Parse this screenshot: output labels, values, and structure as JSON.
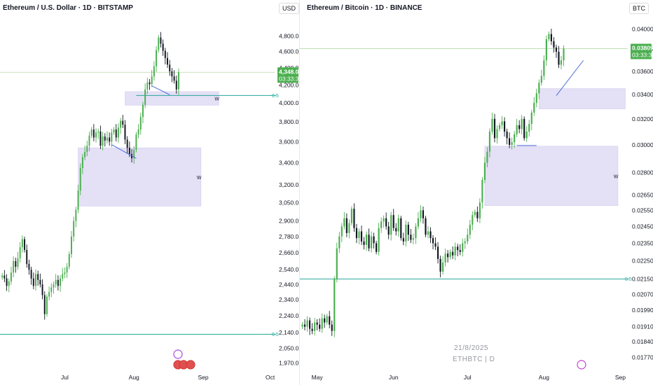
{
  "colors": {
    "up": "#4caf50",
    "down": "#131722",
    "zone": "#e4e0f5",
    "zone_border": "#cfc7ee",
    "level_line": "#26a69a",
    "price_line": "#b7d9a8",
    "trend_line": "#4a6fd8",
    "price_tag_bg": "#4caf50"
  },
  "chart_data": [
    {
      "type": "candlestick",
      "title": "Ethereum / U.S. Dollar · 1D · BITSTAMP",
      "currency": "USD",
      "y_scale": "log",
      "ylim": [
        1920,
        5000
      ],
      "y_ticks": [
        "4,800.0",
        "4,600.0",
        "4,400.0",
        "4,200.0",
        "4,000.0",
        "3,800.0",
        "3,600.0",
        "3,400.0",
        "3,200.0",
        "3,050.0",
        "2,900.0",
        "2,780.0",
        "2,660.0",
        "2,540.0",
        "2,440.0",
        "2,340.0",
        "2,240.0",
        "2,140.0",
        "2,050.0",
        "1,970.0"
      ],
      "y_tick_values": [
        4800,
        4600,
        4400,
        4200,
        4000,
        3800,
        3600,
        3400,
        3200,
        3050,
        2900,
        2780,
        2660,
        2540,
        2440,
        2340,
        2240,
        2140,
        2050,
        1970
      ],
      "x_ticks": [
        {
          "label": "Jul",
          "x": 28
        },
        {
          "label": "Aug",
          "x": 59
        },
        {
          "label": "Sep",
          "x": 90
        },
        {
          "label": "Oct",
          "x": 120
        }
      ],
      "x_range": [
        -1,
        122
      ],
      "current_price": {
        "value": 4348.0,
        "label": "4,348.0",
        "countdown": "03:33:35"
      },
      "levels": [
        {
          "value": 4082,
          "label": "0.5",
          "x_start": 60
        },
        {
          "value": 2130,
          "label": "0.5",
          "x_start": -1
        }
      ],
      "zones": [
        {
          "x0": 55,
          "x1": 97,
          "y_low": 3975,
          "y_high": 4125,
          "label": "W"
        },
        {
          "x0": 34,
          "x1": 89,
          "y_low": 3020,
          "y_high": 3540,
          "label": "W"
        }
      ],
      "trend_lines": [
        [
          {
            "x": 49,
            "y": 3570
          },
          {
            "x": 60,
            "y": 3440
          }
        ],
        [
          {
            "x": 67,
            "y": 4190
          },
          {
            "x": 75,
            "y": 4090
          }
        ]
      ],
      "closes": [
        2500,
        2480,
        2430,
        2460,
        2520,
        2600,
        2560,
        2620,
        2700,
        2760,
        2680,
        2580,
        2540,
        2480,
        2430,
        2510,
        2470,
        2440,
        2370,
        2250,
        2360,
        2390,
        2420,
        2440,
        2470,
        2430,
        2480,
        2510,
        2520,
        2560,
        2650,
        2780,
        2900,
        2990,
        3150,
        3350,
        3450,
        3500,
        3560,
        3660,
        3720,
        3640,
        3690,
        3700,
        3560,
        3650,
        3610,
        3640,
        3600,
        3690,
        3720,
        3640,
        3740,
        3810,
        3770,
        3620,
        3540,
        3480,
        3440,
        3520,
        3670,
        3720,
        3850,
        3980,
        4150,
        4230,
        4210,
        4300,
        4420,
        4620,
        4780,
        4700,
        4610,
        4520,
        4440,
        4360,
        4300,
        4250,
        4150,
        4348
      ],
      "label_hires": "Jul"
    },
    {
      "type": "candlestick",
      "title": "Ethereum / Bitcoin · 1D · BINANCE",
      "currency": "BTC",
      "y_scale": "log",
      "ylim": [
        0.01735,
        0.0408
      ],
      "y_ticks": [
        "0.04000",
        "0.03809",
        "0.03600",
        "0.03400",
        "0.03200",
        "0.03000",
        "0.02800",
        "0.02650",
        "0.02550",
        "0.02450",
        "0.02350",
        "0.02250",
        "0.02150",
        "0.02070",
        "0.01990",
        "0.01910",
        "0.01840",
        "0.01770"
      ],
      "y_tick_values": [
        0.04,
        0.03809,
        0.036,
        0.034,
        0.032,
        0.03,
        0.028,
        0.0265,
        0.0255,
        0.0245,
        0.0235,
        0.0225,
        0.0215,
        0.0207,
        0.0199,
        0.0191,
        0.0184,
        0.0177
      ],
      "x_ticks": [
        {
          "label": "May",
          "x": 6
        },
        {
          "label": "Jun",
          "x": 37
        },
        {
          "label": "Jul",
          "x": 67
        },
        {
          "label": "Aug",
          "x": 98
        },
        {
          "label": "Sep",
          "x": 129
        }
      ],
      "x_range": [
        -1,
        132
      ],
      "current_price": {
        "value": 0.03809,
        "label": "0.03809",
        "countdown": "03:33:35"
      },
      "levels": [
        {
          "value": 0.0215,
          "label": "0.5",
          "x_start": -1
        }
      ],
      "zones": [
        {
          "x0": 96,
          "x1": 131,
          "y_low": 0.0328,
          "y_high": 0.0345,
          "label": ""
        },
        {
          "x0": 74,
          "x1": 128,
          "y_low": 0.0258,
          "y_high": 0.0299,
          "label": "W"
        }
      ],
      "trend_lines": [
        [
          {
            "x": 87,
            "y": 0.02995
          },
          {
            "x": 95,
            "y": 0.02995
          }
        ],
        [
          {
            "x": 103,
            "y": 0.0339
          },
          {
            "x": 114,
            "y": 0.037
          }
        ]
      ],
      "closes": [
        0.0192,
        0.0191,
        0.0194,
        0.019,
        0.0189,
        0.0193,
        0.0192,
        0.019,
        0.0195,
        0.0193,
        0.0196,
        0.0192,
        0.0189,
        0.0215,
        0.0232,
        0.0239,
        0.0245,
        0.025,
        0.0241,
        0.0247,
        0.0256,
        0.0244,
        0.0238,
        0.0242,
        0.0236,
        0.0234,
        0.024,
        0.0232,
        0.0239,
        0.0235,
        0.023,
        0.0244,
        0.0248,
        0.025,
        0.0245,
        0.024,
        0.0252,
        0.0244,
        0.0242,
        0.025,
        0.0238,
        0.0236,
        0.0246,
        0.024,
        0.0237,
        0.0238,
        0.0245,
        0.025,
        0.0255,
        0.025,
        0.024,
        0.0242,
        0.0238,
        0.0235,
        0.0233,
        0.0226,
        0.0219,
        0.0224,
        0.0229,
        0.0227,
        0.023,
        0.0228,
        0.0233,
        0.0231,
        0.023,
        0.0235,
        0.0236,
        0.024,
        0.0246,
        0.0252,
        0.0254,
        0.025,
        0.026,
        0.0275,
        0.0287,
        0.0295,
        0.031,
        0.032,
        0.0305,
        0.0312,
        0.0315,
        0.0318,
        0.031,
        0.0305,
        0.03,
        0.0302,
        0.0308,
        0.0315,
        0.0312,
        0.032,
        0.0305,
        0.031,
        0.0316,
        0.0325,
        0.0333,
        0.0341,
        0.035,
        0.0356,
        0.037,
        0.039,
        0.0395,
        0.0388,
        0.0382,
        0.0378,
        0.0366,
        0.037,
        0.03809
      ],
      "date_label": "21/8/2025",
      "symbol_label": "ETHBTC | D"
    }
  ]
}
